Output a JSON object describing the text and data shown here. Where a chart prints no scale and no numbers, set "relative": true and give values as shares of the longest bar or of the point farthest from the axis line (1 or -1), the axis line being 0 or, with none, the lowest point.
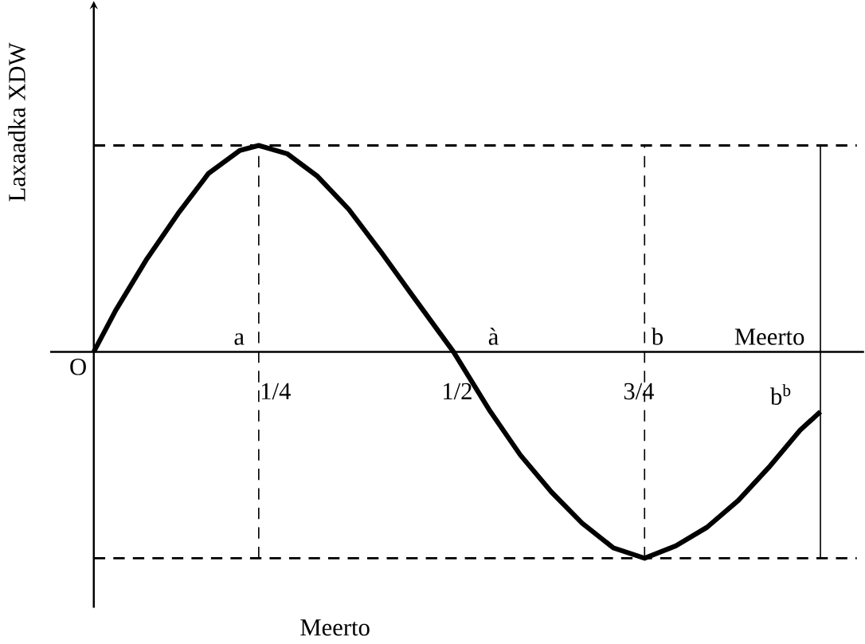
{
  "chart_data": {
    "type": "line",
    "relative": true,
    "xlabel": "Meerto",
    "ylabel": "Laxaadka XDW",
    "xlim": [
      0,
      1
    ],
    "xticks": [
      {
        "value": 0.25,
        "label": "1/4"
      },
      {
        "value": 0.5,
        "label": "1/2"
      },
      {
        "value": 0.75,
        "label": "3/4"
      }
    ],
    "x": [
      0,
      0.03,
      0.073,
      0.116,
      0.158,
      0.201,
      0.227,
      0.266,
      0.308,
      0.351,
      0.394,
      0.437,
      0.495,
      0.544,
      0.587,
      0.63,
      0.672,
      0.715,
      0.758,
      0.801,
      0.844,
      0.887,
      0.929,
      0.972,
      1.0
    ],
    "series": [
      {
        "color": "#000000",
        "values": [
          0,
          0.2,
          0.45,
          0.67,
          0.865,
          0.976,
          1.0,
          0.96,
          0.85,
          0.69,
          0.49,
          0.28,
          0,
          -0.28,
          -0.5,
          -0.68,
          -0.83,
          -0.95,
          -1.0,
          -0.94,
          -0.85,
          -0.72,
          -0.56,
          -0.38,
          -0.29
        ]
      }
    ],
    "ref_lines": [
      {
        "axis": "y",
        "value": 1.0,
        "line_style": "dashed"
      },
      {
        "axis": "y",
        "value": -1.0,
        "line_style": "dashed"
      },
      {
        "axis": "x",
        "value": 0.227,
        "line_style": "dashed"
      },
      {
        "axis": "x",
        "value": 0.758,
        "line_style": "dashed"
      },
      {
        "axis": "x",
        "value": 1.0,
        "line_style": "solid"
      }
    ],
    "annotations": [
      {
        "text": "O",
        "x": 0,
        "y": 0
      },
      "a",
      "à",
      {
        "text": "b",
        "x": 0.758,
        "y": 0
      },
      "Meerto",
      "b$^{b}$"
    ]
  }
}
